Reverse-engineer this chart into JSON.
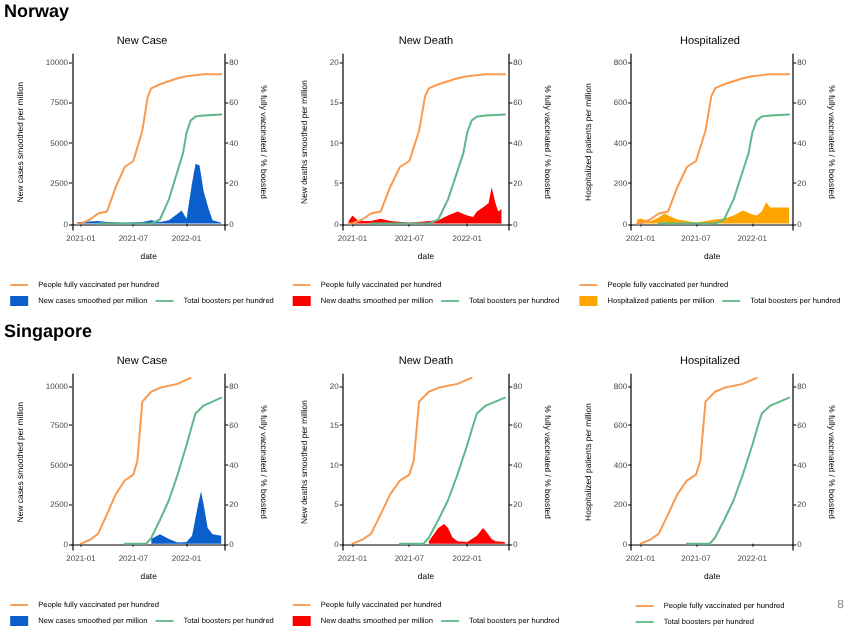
{
  "chart_data": [
    {
      "type": "line",
      "title": "New Case",
      "annotations": [
        "Norway"
      ],
      "xlabel": "date",
      "ylabel": "New cases smoothed per million",
      "y2label": "% fully vaccinated / % boosted",
      "xlim": [
        "2020-12-01",
        "2022-05-15"
      ],
      "xticks": [
        "2021-01",
        "2021-07",
        "2022-01"
      ],
      "ylim": [
        -400,
        10500
      ],
      "yticks": [
        0,
        2500,
        5000,
        7500,
        10000
      ],
      "y2lim": [
        -3.2,
        84
      ],
      "y2ticks": [
        0,
        20,
        40,
        60,
        80
      ],
      "legend": "bottom",
      "series": [
        {
          "name": "People fully vaccinated per hundred",
          "color": "#f89a50",
          "axis": "y2",
          "x": [
            "2020-12-20",
            "2021-01-01",
            "2021-02-01",
            "2021-03-01",
            "2021-04-01",
            "2021-05-01",
            "2021-06-01",
            "2021-07-01",
            "2021-08-01",
            "2021-08-20",
            "2021-09-01",
            "2021-10-01",
            "2021-12-01",
            "2022-01-01",
            "2022-03-01",
            "2022-05-01"
          ],
          "values": [
            0,
            0,
            2,
            5,
            6,
            18,
            28,
            31,
            46,
            63,
            67,
            69,
            72,
            73,
            74,
            74
          ]
        },
        {
          "type": "area",
          "name": "New cases smoothed per million",
          "color": "#0a5fcc",
          "x": [
            "2020-12-20",
            "2021-01-01",
            "2021-03-01",
            "2021-04-01",
            "2021-06-01",
            "2021-08-01",
            "2021-09-01",
            "2021-10-01",
            "2021-11-01",
            "2021-12-01",
            "2021-12-15",
            "2022-01-01",
            "2022-01-20",
            "2022-02-01",
            "2022-02-15",
            "2022-03-01",
            "2022-03-20",
            "2022-04-01",
            "2022-05-01"
          ],
          "values": [
            100,
            100,
            150,
            100,
            50,
            100,
            200,
            100,
            200,
            600,
            800,
            300,
            2500,
            3700,
            3600,
            2000,
            800,
            200,
            50
          ]
        },
        {
          "name": "Total boosters per hundred",
          "color": "#5fb88a",
          "axis": "y2",
          "x": [
            "2021-03-01",
            "2021-06-01",
            "2021-09-01",
            "2021-10-01",
            "2021-11-01",
            "2021-12-01",
            "2021-12-20",
            "2022-01-01",
            "2022-01-15",
            "2022-02-01",
            "2022-03-01",
            "2022-05-01"
          ],
          "values": [
            0,
            0,
            0,
            2,
            12,
            26,
            35,
            45,
            51,
            53,
            53.5,
            54
          ]
        }
      ]
    },
    {
      "type": "line",
      "title": "New Death",
      "xlabel": "date",
      "ylabel": "New deaths smoothed per million",
      "y2label": "% fully vaccinated / % boosted",
      "xlim": [
        "2020-12-01",
        "2022-05-15"
      ],
      "xticks": [
        "2021-01",
        "2021-07",
        "2022-01"
      ],
      "ylim": [
        -0.8,
        21
      ],
      "yticks": [
        0,
        5,
        10,
        15,
        20
      ],
      "y2lim": [
        -3.2,
        84
      ],
      "y2ticks": [
        0,
        20,
        40,
        60,
        80
      ],
      "legend": "bottom",
      "series": [
        {
          "name": "People fully vaccinated per hundred",
          "color": "#f89a50",
          "axis": "y2",
          "x": [
            "2020-12-20",
            "2021-01-01",
            "2021-02-01",
            "2021-03-01",
            "2021-04-01",
            "2021-05-01",
            "2021-06-01",
            "2021-07-01",
            "2021-08-01",
            "2021-08-20",
            "2021-09-01",
            "2021-10-01",
            "2021-12-01",
            "2022-01-01",
            "2022-03-01",
            "2022-05-01"
          ],
          "values": [
            0,
            0,
            2,
            5,
            6,
            18,
            28,
            31,
            46,
            63,
            67,
            69,
            72,
            73,
            74,
            74
          ]
        },
        {
          "type": "area",
          "name": "New deaths smoothed per million",
          "color": "#ff0000",
          "x": [
            "2020-12-20",
            "2021-01-01",
            "2021-01-20",
            "2021-03-01",
            "2021-04-01",
            "2021-05-01",
            "2021-07-01",
            "2021-10-01",
            "2021-11-01",
            "2021-12-01",
            "2022-01-01",
            "2022-01-20",
            "2022-02-01",
            "2022-02-20",
            "2022-03-10",
            "2022-03-20",
            "2022-04-01",
            "2022-04-10",
            "2022-04-20"
          ],
          "values": [
            0.3,
            1,
            0.3,
            0.3,
            0.6,
            0.3,
            0.1,
            0.4,
            1,
            1.5,
            1,
            0.8,
            1.5,
            2,
            2.5,
            4.5,
            2.5,
            1.5,
            1.8
          ]
        },
        {
          "name": "Total boosters per hundred",
          "color": "#5fb88a",
          "axis": "y2",
          "x": [
            "2021-03-01",
            "2021-06-01",
            "2021-09-01",
            "2021-10-01",
            "2021-11-01",
            "2021-12-01",
            "2021-12-20",
            "2022-01-01",
            "2022-01-15",
            "2022-02-01",
            "2022-03-01",
            "2022-05-01"
          ],
          "values": [
            0,
            0,
            0,
            2,
            12,
            26,
            35,
            45,
            51,
            53,
            53.5,
            54
          ]
        }
      ]
    },
    {
      "type": "line",
      "title": "Hospitalized",
      "xlabel": "date",
      "ylabel": "Hospitalized patients per million",
      "y2label": "% fully vaccinated / % boosted",
      "xlim": [
        "2020-12-01",
        "2022-05-15"
      ],
      "xticks": [
        "2021-01",
        "2021-07",
        "2022-01"
      ],
      "ylim": [
        -32,
        840
      ],
      "yticks": [
        0,
        200,
        400,
        600,
        800
      ],
      "y2lim": [
        -3.2,
        84
      ],
      "y2ticks": [
        0,
        20,
        40,
        60,
        80
      ],
      "legend": "bottom",
      "series": [
        {
          "name": "People fully vaccinated per hundred",
          "color": "#f89a50",
          "axis": "y2",
          "x": [
            "2020-12-20",
            "2021-01-01",
            "2021-02-01",
            "2021-03-01",
            "2021-04-01",
            "2021-05-01",
            "2021-06-01",
            "2021-07-01",
            "2021-08-01",
            "2021-08-20",
            "2021-09-01",
            "2021-10-01",
            "2021-12-01",
            "2022-01-01",
            "2022-03-01",
            "2022-05-01"
          ],
          "values": [
            0,
            0,
            2,
            5,
            6,
            18,
            28,
            31,
            46,
            63,
            67,
            69,
            72,
            73,
            74,
            74
          ]
        },
        {
          "type": "area",
          "name": "Hospitalized patients per million",
          "color": "#ffa500",
          "x": [
            "2020-12-20",
            "2021-01-01",
            "2021-02-01",
            "2021-03-01",
            "2021-03-20",
            "2021-04-01",
            "2021-05-01",
            "2021-07-01",
            "2021-09-01",
            "2021-10-01",
            "2021-11-01",
            "2021-12-01",
            "2022-01-01",
            "2022-01-15",
            "2022-02-01",
            "2022-02-15",
            "2022-03-01",
            "2022-05-01"
          ],
          "values": [
            20,
            25,
            10,
            30,
            50,
            40,
            20,
            5,
            20,
            25,
            40,
            65,
            45,
            40,
            60,
            105,
            80,
            80
          ]
        },
        {
          "name": "Total boosters per hundred",
          "color": "#5fb88a",
          "axis": "y2",
          "x": [
            "2021-03-01",
            "2021-06-01",
            "2021-09-01",
            "2021-10-01",
            "2021-11-01",
            "2021-12-01",
            "2021-12-20",
            "2022-01-01",
            "2022-01-15",
            "2022-02-01",
            "2022-03-01",
            "2022-05-01"
          ],
          "values": [
            0,
            0,
            0,
            2,
            12,
            26,
            35,
            45,
            51,
            53,
            53.5,
            54
          ]
        }
      ]
    },
    {
      "type": "line",
      "title": "New Case",
      "annotations": [
        "Singapore"
      ],
      "xlabel": "date",
      "ylabel": "New cases smoothed per million",
      "y2label": "% fully vaccinated / % boosted",
      "xlim": [
        "2020-12-01",
        "2022-05-15"
      ],
      "xticks": [
        "2021-01",
        "2021-07",
        "2022-01"
      ],
      "ylim": [
        -400,
        10750
      ],
      "yticks": [
        0,
        2500,
        5000,
        7500,
        10000
      ],
      "y2lim": [
        -3.2,
        86
      ],
      "y2ticks": [
        0,
        20,
        40,
        60,
        80
      ],
      "legend": "bottom",
      "series": [
        {
          "name": "People fully vaccinated per hundred",
          "color": "#f89a50",
          "axis": "y2",
          "x": [
            "2021-01-01",
            "2021-02-01",
            "2021-03-01",
            "2021-04-01",
            "2021-05-01",
            "2021-06-01",
            "2021-07-01",
            "2021-07-15",
            "2021-08-01",
            "2021-09-01",
            "2021-10-01",
            "2021-12-01",
            "2022-01-15"
          ],
          "values": [
            0,
            2,
            5,
            15,
            25,
            32,
            35,
            42,
            72,
            77,
            79,
            81,
            84
          ]
        },
        {
          "type": "area",
          "name": "New cases smoothed per million",
          "color": "#0a5fcc",
          "x": [
            "2021-09-01",
            "2021-10-01",
            "2021-11-01",
            "2021-12-01",
            "2022-01-01",
            "2022-01-20",
            "2022-02-10",
            "2022-02-20",
            "2022-03-01",
            "2022-03-15",
            "2022-04-01",
            "2022-05-01"
          ],
          "values": [
            300,
            600,
            300,
            80,
            100,
            500,
            2500,
            3300,
            2500,
            1000,
            600,
            500
          ]
        },
        {
          "name": "Total boosters per hundred",
          "color": "#5fb88a",
          "axis": "y2",
          "x": [
            "2021-06-01",
            "2021-08-15",
            "2021-09-01",
            "2021-10-01",
            "2021-11-01",
            "2021-12-01",
            "2022-01-01",
            "2022-01-20",
            "2022-02-01",
            "2022-03-01",
            "2022-04-01",
            "2022-05-01"
          ],
          "values": [
            0,
            0,
            3,
            12,
            22,
            35,
            50,
            60,
            66,
            70,
            72,
            74
          ]
        }
      ]
    },
    {
      "type": "line",
      "title": "New Death",
      "xlabel": "date",
      "ylabel": "New deaths smoothed per million",
      "y2label": "% fully vaccinated / % boosted",
      "xlim": [
        "2020-12-01",
        "2022-05-15"
      ],
      "xticks": [
        "2021-01",
        "2021-07",
        "2022-01"
      ],
      "ylim": [
        -0.8,
        21.5
      ],
      "yticks": [
        0,
        5,
        10,
        15,
        20
      ],
      "y2lim": [
        -3.2,
        86
      ],
      "y2ticks": [
        0,
        20,
        40,
        60,
        80
      ],
      "legend": "bottom",
      "series": [
        {
          "name": "People fully vaccinated per hundred",
          "color": "#f89a50",
          "axis": "y2",
          "x": [
            "2021-01-01",
            "2021-02-01",
            "2021-03-01",
            "2021-04-01",
            "2021-05-01",
            "2021-06-01",
            "2021-07-01",
            "2021-07-15",
            "2021-08-01",
            "2021-09-01",
            "2021-10-01",
            "2021-12-01",
            "2022-01-15"
          ],
          "values": [
            0,
            2,
            5,
            15,
            25,
            32,
            35,
            42,
            72,
            77,
            79,
            81,
            84
          ]
        },
        {
          "type": "area",
          "name": "New deaths smoothed per million",
          "color": "#ff0000",
          "x": [
            "2021-09-01",
            "2021-10-01",
            "2021-10-20",
            "2021-11-01",
            "2021-11-15",
            "2021-12-01",
            "2022-01-01",
            "2022-02-01",
            "2022-02-20",
            "2022-03-01",
            "2022-03-20",
            "2022-04-01",
            "2022-05-01"
          ],
          "values": [
            0.3,
            2,
            2.5,
            2,
            0.8,
            0.3,
            0.2,
            1,
            2,
            1.6,
            0.6,
            0.3,
            0.2
          ]
        },
        {
          "name": "Total boosters per hundred",
          "color": "#5fb88a",
          "axis": "y2",
          "x": [
            "2021-06-01",
            "2021-08-15",
            "2021-09-01",
            "2021-10-01",
            "2021-11-01",
            "2021-12-01",
            "2022-01-01",
            "2022-01-20",
            "2022-02-01",
            "2022-03-01",
            "2022-04-01",
            "2022-05-01"
          ],
          "values": [
            0,
            0,
            3,
            12,
            22,
            35,
            50,
            60,
            66,
            70,
            72,
            74
          ]
        }
      ]
    },
    {
      "type": "line",
      "title": "Hospitalized",
      "annotations": [
        "8"
      ],
      "xlabel": "date",
      "ylabel": "Hospitalized patients per million",
      "y2label": "% fully vaccinated / % boosted",
      "xlim": [
        "2020-12-01",
        "2022-05-15"
      ],
      "xticks": [
        "2021-01",
        "2021-07",
        "2022-01"
      ],
      "ylim": [
        -32,
        860
      ],
      "yticks": [
        0,
        200,
        400,
        600,
        800
      ],
      "y2lim": [
        -3.2,
        86
      ],
      "y2ticks": [
        0,
        20,
        40,
        60,
        80
      ],
      "legend": "bottom",
      "series": [
        {
          "name": "People fully vaccinated per hundred",
          "color": "#f89a50",
          "axis": "y2",
          "x": [
            "2021-01-01",
            "2021-02-01",
            "2021-03-01",
            "2021-04-01",
            "2021-05-01",
            "2021-06-01",
            "2021-07-01",
            "2021-07-15",
            "2021-08-01",
            "2021-09-01",
            "2021-10-01",
            "2021-12-01",
            "2022-01-15"
          ],
          "values": [
            0,
            2,
            5,
            15,
            25,
            32,
            35,
            42,
            72,
            77,
            79,
            81,
            84
          ]
        },
        {
          "name": "Total boosters per hundred",
          "color": "#5fb88a",
          "axis": "y2",
          "x": [
            "2021-06-01",
            "2021-08-15",
            "2021-09-01",
            "2021-10-01",
            "2021-11-01",
            "2021-12-01",
            "2022-01-01",
            "2022-01-20",
            "2022-02-01",
            "2022-03-01",
            "2022-04-01",
            "2022-05-01"
          ],
          "values": [
            0,
            0,
            3,
            12,
            22,
            35,
            50,
            60,
            66,
            70,
            72,
            74
          ]
        }
      ]
    }
  ]
}
